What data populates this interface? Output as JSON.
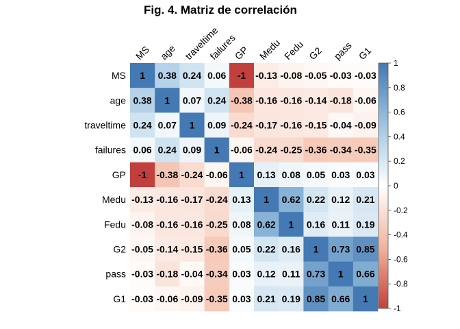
{
  "chart_data": {
    "type": "heatmap",
    "title": "Fig. 4. Matriz de correlación",
    "variables": [
      "MS",
      "age",
      "traveltime",
      "failures",
      "GP",
      "Medu",
      "Fedu",
      "G2",
      "pass",
      "G1"
    ],
    "values": [
      [
        1,
        0.38,
        0.24,
        0.06,
        -1,
        -0.13,
        -0.08,
        -0.05,
        -0.03,
        -0.03
      ],
      [
        0.38,
        1,
        0.07,
        0.24,
        -0.38,
        -0.16,
        -0.16,
        -0.14,
        -0.18,
        -0.06
      ],
      [
        0.24,
        0.07,
        1,
        0.09,
        -0.24,
        -0.17,
        -0.16,
        -0.15,
        -0.04,
        -0.09
      ],
      [
        0.06,
        0.24,
        0.09,
        1,
        -0.06,
        -0.24,
        -0.25,
        -0.36,
        -0.34,
        -0.35
      ],
      [
        -1,
        -0.38,
        -0.24,
        -0.06,
        1,
        0.13,
        0.08,
        0.05,
        0.03,
        0.03
      ],
      [
        -0.13,
        -0.16,
        -0.17,
        -0.24,
        0.13,
        1,
        0.62,
        0.22,
        0.12,
        0.21
      ],
      [
        -0.08,
        -0.16,
        -0.16,
        -0.25,
        0.08,
        0.62,
        1,
        0.16,
        0.11,
        0.19
      ],
      [
        -0.05,
        -0.14,
        -0.15,
        -0.36,
        0.05,
        0.22,
        0.16,
        1,
        0.73,
        0.85
      ],
      [
        -0.03,
        -0.18,
        -0.04,
        -0.34,
        0.03,
        0.12,
        0.11,
        0.73,
        1,
        0.66
      ],
      [
        -0.03,
        -0.06,
        -0.09,
        -0.35,
        0.03,
        0.21,
        0.19,
        0.85,
        0.66,
        1
      ]
    ],
    "value_labels": [
      [
        "1",
        "0.38",
        "0.24",
        "0.06",
        "-1",
        "-0.13",
        "-0.08",
        "-0.05",
        "-0.03",
        "-0.03"
      ],
      [
        "0.38",
        "1",
        "0.07",
        "0.24",
        "-0.38",
        "-0.16",
        "-0.16",
        "-0.14",
        "-0.18",
        "-0.06"
      ],
      [
        "0.24",
        "0.07",
        "1",
        "0.09",
        "-0.24",
        "-0.17",
        "-0.16",
        "-0.15",
        "-0.04",
        "-0.09"
      ],
      [
        "0.06",
        "0.24",
        "0.09",
        "1",
        "-0.06",
        "-0.24",
        "-0.25",
        "-0.36",
        "-0.34",
        "-0.35"
      ],
      [
        "-1",
        "-0.38",
        "-0.24",
        "-0.06",
        "1",
        "0.13",
        "0.08",
        "0.05",
        "0.03",
        "0.03"
      ],
      [
        "-0.13",
        "-0.16",
        "-0.17",
        "-0.24",
        "0.13",
        "1",
        "0.62",
        "0.22",
        "0.12",
        "0.21"
      ],
      [
        "-0.08",
        "-0.16",
        "-0.16",
        "-0.25",
        "0.08",
        "0.62",
        "1",
        "0.16",
        "0.11",
        "0.19"
      ],
      [
        "-0.05",
        "-0.14",
        "-0.15",
        "-0.36",
        "0.05",
        "0.22",
        "0.16",
        "1",
        "0.73",
        "0.85"
      ],
      [
        "-0.03",
        "-0.18",
        "-0.04",
        "-0.34",
        "0.03",
        "0.12",
        "0.11",
        "0.73",
        "1",
        "0.66"
      ],
      [
        "-0.03",
        "-0.06",
        "-0.09",
        "-0.35",
        "0.03",
        "0.21",
        "0.19",
        "0.85",
        "0.66",
        "1"
      ]
    ],
    "colorbar": {
      "range": [
        -1,
        1
      ],
      "ticks": [
        1,
        0.8,
        0.6,
        0.4,
        0.2,
        0,
        -0.2,
        -0.4,
        -0.6,
        -0.8,
        -1
      ],
      "tick_labels": [
        "1",
        "0.8",
        "0.6",
        "0.4",
        "0.2",
        "0",
        "-0.2",
        "-0.4",
        "-0.6",
        "-0.8",
        "-1"
      ],
      "low_color": "#c1403d",
      "mid_color": "#ffffff",
      "high_color": "#4479b3",
      "placement": "right"
    }
  }
}
